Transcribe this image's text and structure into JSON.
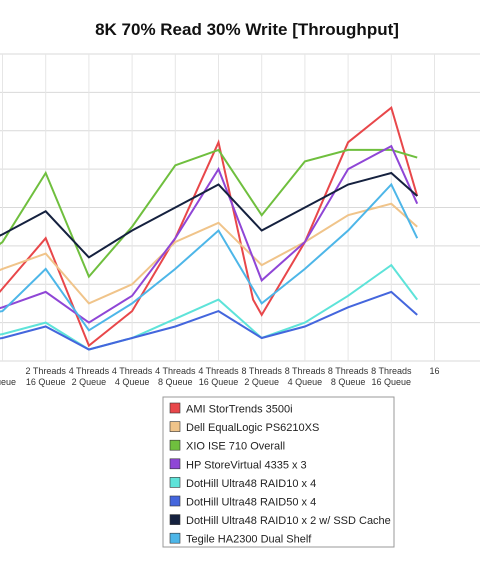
{
  "chart_data": {
    "type": "line",
    "title": "8K 70% Read 30% Write [Throughput]",
    "xlabel": "",
    "ylabel": "",
    "ylim": [
      0,
      8
    ],
    "grid": true,
    "legend_position": "bottom",
    "categories": [
      [
        "",
        "Queue"
      ],
      [
        "2 Threads",
        "16 Queue"
      ],
      [
        "4 Threads",
        "2 Queue"
      ],
      [
        "4 Threads",
        "4 Queue"
      ],
      [
        "4 Threads",
        "8 Queue"
      ],
      [
        "4 Threads",
        "16 Queue"
      ],
      [
        "8 Threads",
        "2 Queue"
      ],
      [
        "8 Threads",
        "4 Queue"
      ],
      [
        "8 Threads",
        "8 Queue"
      ],
      [
        "8 Threads",
        "16 Queue"
      ],
      [
        "16",
        ""
      ]
    ],
    "x_fractional": [
      0,
      1,
      2,
      3,
      4,
      5,
      6,
      7,
      8,
      9,
      10
    ],
    "series": [
      {
        "name": "AMI StorTrends 3500i",
        "color": "#e8474a",
        "points": [
          [
            -1.3,
            0.4
          ],
          [
            -0.6,
            1.1
          ],
          [
            1,
            3.2
          ],
          [
            2,
            0.4
          ],
          [
            3,
            1.3
          ],
          [
            4,
            3.2
          ],
          [
            5,
            5.7
          ],
          [
            5.8,
            1.6
          ],
          [
            6,
            1.2
          ],
          [
            7,
            3.1
          ],
          [
            8,
            5.7
          ],
          [
            9,
            6.6
          ],
          [
            9.6,
            4.3
          ]
        ]
      },
      {
        "name": "Dell EqualLogic PS6210XS",
        "color": "#f0c48a",
        "points": [
          [
            -0.6,
            2.1
          ],
          [
            0,
            2.4
          ],
          [
            1,
            2.8
          ],
          [
            2,
            1.5
          ],
          [
            3,
            2.0
          ],
          [
            4,
            3.1
          ],
          [
            5,
            3.6
          ],
          [
            6,
            2.5
          ],
          [
            7,
            3.1
          ],
          [
            8,
            3.8
          ],
          [
            9,
            4.1
          ],
          [
            9.6,
            3.5
          ]
        ]
      },
      {
        "name": "XIO ISE 710 Overall",
        "color": "#6fbf3e",
        "points": [
          [
            -0.6,
            2.6
          ],
          [
            0,
            3.1
          ],
          [
            1,
            4.9
          ],
          [
            2,
            2.2
          ],
          [
            3,
            3.5
          ],
          [
            4,
            5.1
          ],
          [
            5,
            5.5
          ],
          [
            6,
            3.8
          ],
          [
            7,
            5.2
          ],
          [
            8,
            5.5
          ],
          [
            9,
            5.5
          ],
          [
            9.6,
            5.3
          ]
        ]
      },
      {
        "name": "HP StoreVirtual 4335 x 3",
        "color": "#8f46d6",
        "points": [
          [
            -0.6,
            1.2
          ],
          [
            0,
            1.4
          ],
          [
            1,
            1.8
          ],
          [
            2,
            1.0
          ],
          [
            3,
            1.7
          ],
          [
            4,
            3.2
          ],
          [
            5,
            5.0
          ],
          [
            6,
            2.1
          ],
          [
            7,
            3.1
          ],
          [
            8,
            5.0
          ],
          [
            9,
            5.6
          ],
          [
            9.6,
            4.1
          ]
        ]
      },
      {
        "name": "DotHill Ultra48 RAID10 x 4",
        "color": "#5ee3d9",
        "points": [
          [
            -0.6,
            0.6
          ],
          [
            0,
            0.7
          ],
          [
            1,
            1.0
          ],
          [
            2,
            0.3
          ],
          [
            3,
            0.6
          ],
          [
            4,
            1.1
          ],
          [
            5,
            1.6
          ],
          [
            6,
            0.6
          ],
          [
            7,
            1.0
          ],
          [
            8,
            1.7
          ],
          [
            9,
            2.5
          ],
          [
            9.6,
            1.6
          ]
        ]
      },
      {
        "name": "DotHill Ultra48 RAID50 x 4",
        "color": "#4466dd",
        "points": [
          [
            -0.6,
            0.5
          ],
          [
            0,
            0.6
          ],
          [
            1,
            0.9
          ],
          [
            2,
            0.3
          ],
          [
            3,
            0.6
          ],
          [
            4,
            0.9
          ],
          [
            5,
            1.3
          ],
          [
            6,
            0.6
          ],
          [
            7,
            0.9
          ],
          [
            8,
            1.4
          ],
          [
            9,
            1.8
          ],
          [
            9.6,
            1.2
          ]
        ]
      },
      {
        "name": "DotHill Ultra48 RAID10 x 2 w/ SSD Cache",
        "color": "#15213f",
        "points": [
          [
            -0.6,
            3.0
          ],
          [
            0,
            3.3
          ],
          [
            1,
            3.9
          ],
          [
            2,
            2.7
          ],
          [
            3,
            3.4
          ],
          [
            4,
            4.0
          ],
          [
            5,
            4.6
          ],
          [
            6,
            3.4
          ],
          [
            7,
            4.0
          ],
          [
            8,
            4.6
          ],
          [
            9,
            4.9
          ],
          [
            9.6,
            4.3
          ]
        ]
      },
      {
        "name": "Tegile HA2300 Dual Shelf",
        "color": "#4db6e8",
        "points": [
          [
            -0.6,
            1.2
          ],
          [
            0,
            1.3
          ],
          [
            1,
            2.4
          ],
          [
            2,
            0.8
          ],
          [
            3,
            1.5
          ],
          [
            4,
            2.4
          ],
          [
            5,
            3.4
          ],
          [
            6,
            1.5
          ],
          [
            7,
            2.4
          ],
          [
            8,
            3.4
          ],
          [
            9,
            4.6
          ],
          [
            9.6,
            3.2
          ]
        ]
      }
    ]
  }
}
